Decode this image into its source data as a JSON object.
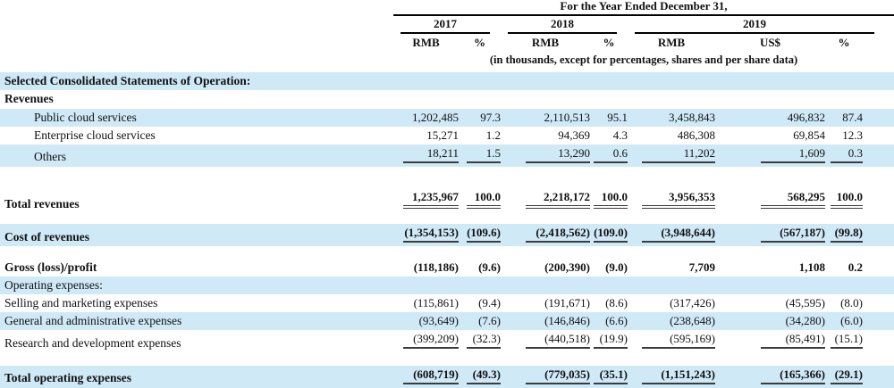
{
  "header": {
    "period_title": "For the Year Ended December 31,",
    "year_groups": [
      {
        "year": "2017"
      },
      {
        "year": "2018"
      },
      {
        "year": "2019"
      }
    ],
    "columns": [
      "RMB",
      "%",
      "RMB",
      "%",
      "RMB",
      "US$",
      "%"
    ],
    "note": "(in thousands, except for percentages, shares and per share data)"
  },
  "colors": {
    "shaded_row": "#cfe9f7",
    "rule": "#000000",
    "text": "#111111"
  },
  "table": {
    "section_title": "Selected Consolidated Statements of Operation:",
    "rows": [
      {
        "label": "Selected Consolidated Statements of Operation:",
        "bold": true,
        "shaded": true,
        "indent": false,
        "values": []
      },
      {
        "label": "Revenues",
        "bold": true,
        "shaded": false,
        "indent": false,
        "values": []
      },
      {
        "label": "Public cloud services",
        "bold": false,
        "shaded": true,
        "indent": true,
        "values": [
          "1,202,485",
          "97.3",
          "2,110,513",
          "95.1",
          "3,458,843",
          "496,832",
          "87.4"
        ]
      },
      {
        "label": "Enterprise cloud services",
        "bold": false,
        "shaded": false,
        "indent": true,
        "values": [
          "15,271",
          "1.2",
          "94,369",
          "4.3",
          "486,308",
          "69,854",
          "12.3"
        ]
      },
      {
        "label": "Others",
        "bold": false,
        "shaded": true,
        "indent": true,
        "values": [
          "18,211",
          "1.5",
          "13,290",
          "0.6",
          "11,202",
          "1,609",
          "0.3"
        ],
        "underline": "single"
      },
      {
        "label": "Total revenues",
        "gap_before": 24,
        "bold": true,
        "shaded": false,
        "indent": false,
        "values": [
          "1,235,967",
          "100.0",
          "2,218,172",
          "100.0",
          "3,956,353",
          "568,295",
          "100.0"
        ],
        "underline": "double"
      },
      {
        "label": "Cost of revenues",
        "gap_before": 12,
        "bold": true,
        "shaded": true,
        "indent": false,
        "values": [
          "(1,354,153)",
          "(109.6)",
          "(2,418,562)",
          "(109.0)",
          "(3,948,644)",
          "(567,187)",
          "(99.8)"
        ],
        "underline": "single"
      },
      {
        "label": "Gross (loss)/profit",
        "gap_before": 14,
        "bold": true,
        "shaded": false,
        "indent": false,
        "values": [
          "(118,186)",
          "(9.6)",
          "(200,390)",
          "(9.0)",
          "7,709",
          "1,108",
          "0.2"
        ]
      },
      {
        "label": "Operating expenses:",
        "bold": false,
        "shaded": true,
        "indent": false,
        "values": []
      },
      {
        "label": "Selling and marketing expenses",
        "bold": false,
        "shaded": false,
        "indent": false,
        "values": [
          "(115,861)",
          "(9.4)",
          "(191,671)",
          "(8.6)",
          "(317,426)",
          "(45,595)",
          "(8.0)"
        ]
      },
      {
        "label": "General and administrative expenses",
        "bold": false,
        "shaded": true,
        "indent": false,
        "values": [
          "(93,649)",
          "(7.6)",
          "(146,846)",
          "(6.6)",
          "(238,648)",
          "(34,280)",
          "(6.0)"
        ]
      },
      {
        "label": "Research and development expenses",
        "bold": false,
        "shaded": false,
        "indent": false,
        "values": [
          "(399,209)",
          "(32.3)",
          "(440,518)",
          "(19.9)",
          "(595,169)",
          "(85,491)",
          "(15.1)"
        ],
        "underline": "single"
      },
      {
        "label": "Total operating expenses",
        "gap_before": 15,
        "bold": true,
        "shaded": true,
        "indent": false,
        "values": [
          "(608,719)",
          "(49.3)",
          "(779,035)",
          "(35.1)",
          "(1,151,243)",
          "(165,366)",
          "(29.1)"
        ],
        "underline": "single"
      }
    ]
  }
}
